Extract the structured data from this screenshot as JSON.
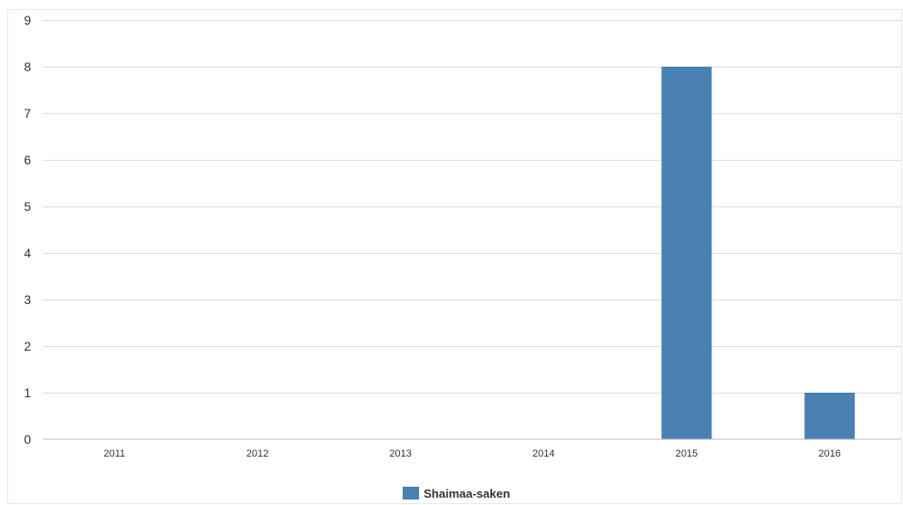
{
  "chart_data": {
    "type": "bar",
    "categories": [
      "2011",
      "2012",
      "2013",
      "2014",
      "2015",
      "2016"
    ],
    "series": [
      {
        "name": "Shaimaa-saken",
        "values": [
          0,
          0,
          0,
          0,
          8,
          1
        ],
        "color": "#4a81b3"
      }
    ],
    "ylim": [
      0,
      9
    ],
    "yticks": [
      "0",
      "1",
      "2",
      "3",
      "4",
      "5",
      "6",
      "7",
      "8",
      "9"
    ],
    "grid": true,
    "legend_position": "bottom-center"
  }
}
